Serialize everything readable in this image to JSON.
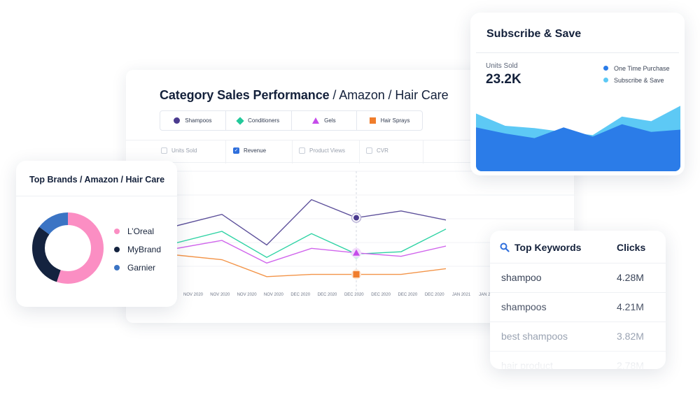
{
  "category_chart": {
    "title_main": "Category Sales Performance",
    "title_sub": " / Amazon / Hair Care",
    "legend": [
      {
        "label": "Shampoos",
        "marker": "circle",
        "color": "#4b3b8f"
      },
      {
        "label": "Conditioners",
        "marker": "diamond",
        "color": "#23c99a"
      },
      {
        "label": "Gels",
        "marker": "triangle",
        "color": "#c54cea"
      },
      {
        "label": "Hair Sprays",
        "marker": "square",
        "color": "#f07d2c"
      }
    ],
    "metrics": [
      {
        "label": "Units Sold",
        "checked": false
      },
      {
        "label": "Revenue",
        "checked": true
      },
      {
        "label": "Product Views",
        "checked": false
      },
      {
        "label": "CVR",
        "checked": false
      }
    ],
    "x_ticks": [
      "NOV 2020",
      "NOV 2020",
      "NOV 2020",
      "NOV 2020",
      "DEC 2020",
      "DEC 2020",
      "DEC 2020",
      "DEC 2020",
      "DEC 2020",
      "DEC 2020",
      "JAN 2021",
      "JAN 2021",
      "JAN 2"
    ]
  },
  "chart_data": {
    "type": "line",
    "title": "Category Sales Performance / Amazon / Hair Care",
    "grid": true,
    "highlight_index": 4,
    "series": [
      {
        "name": "Shampoos",
        "color": "#5c4f9a",
        "values": [
          55,
          65,
          38,
          78,
          62,
          68,
          60
        ]
      },
      {
        "name": "Conditioners",
        "color": "#2fd3a4",
        "values": [
          40,
          50,
          27,
          48,
          30,
          32,
          52
        ]
      },
      {
        "name": "Gels",
        "color": "#d064ec",
        "values": [
          35,
          42,
          22,
          35,
          31,
          28,
          37
        ]
      },
      {
        "name": "Hair Sprays",
        "color": "#f39448",
        "values": [
          29,
          25,
          10,
          12,
          12,
          12,
          17
        ]
      }
    ]
  },
  "top_brands": {
    "title": "Top Brands / Amazon / Hair Care",
    "items": [
      {
        "label": "L’Oreal",
        "share": 0.55,
        "color": "#fb8ec3"
      },
      {
        "label": "MyBrand",
        "share": 0.3,
        "color": "#14233f"
      },
      {
        "label": "Garnier",
        "share": 0.15,
        "color": "#3b74c4"
      }
    ]
  },
  "subscribe": {
    "title": "Subscribe & Save",
    "units_label": "Units Sold",
    "units_value": "23.2K",
    "legend": [
      {
        "label": "One Time Purchase",
        "color": "#2b7ce8"
      },
      {
        "label": "Subscribe & Save",
        "color": "#5dc9f5"
      }
    ],
    "area_data": {
      "x": [
        0,
        1,
        2,
        3,
        4,
        5,
        6,
        7
      ],
      "one_time": [
        58,
        50,
        44,
        58,
        46,
        62,
        52,
        55
      ],
      "total": [
        76,
        60,
        57,
        52,
        48,
        72,
        66,
        86
      ]
    }
  },
  "keywords": {
    "title": "Top Keywords",
    "clicks_header": "Clicks",
    "rows": [
      {
        "keyword": "shampoo",
        "clicks": "4.28M"
      },
      {
        "keyword": "shampoos",
        "clicks": "4.21M"
      },
      {
        "keyword": "best shampoos",
        "clicks": "3.82M"
      },
      {
        "keyword": "hair product",
        "clicks": "2.78M"
      }
    ]
  }
}
